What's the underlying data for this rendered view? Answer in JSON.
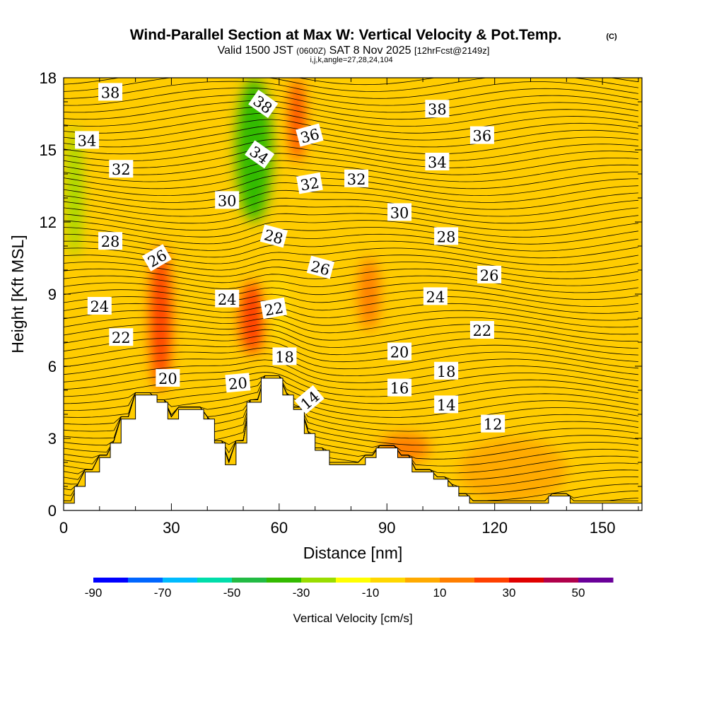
{
  "chart_data": {
    "type": "heatmap",
    "title": "Wind-Parallel Section at Max W: Vertical Velocity & Pot.Temp.",
    "copyright": "(C)",
    "subtitle": {
      "valid": "Valid 1500 JST",
      "zulu": "(0600Z)",
      "date": "SAT 8 Nov 2025",
      "forecast": "[12hrFcst@2149z]"
    },
    "indices": "i,j,k,angle=27,28,24,104",
    "xlabel": "Distance [nm]",
    "ylabel": "Height [Kft MSL]",
    "xlim": [
      0,
      161
    ],
    "ylim": [
      0,
      18
    ],
    "xticks": [
      "0",
      "30",
      "60",
      "90",
      "120",
      "150"
    ],
    "yticks": [
      "0",
      "3",
      "6",
      "9",
      "12",
      "15",
      "18"
    ],
    "colorbar": {
      "label": "Vertical Velocity [cm/s]",
      "ticks": [
        "-90",
        "-70",
        "-50",
        "-30",
        "-10",
        "10",
        "30",
        "50"
      ],
      "range": [
        -90,
        60
      ],
      "colors": [
        "#0000ff",
        "#0066ff",
        "#00bbff",
        "#00ddaa",
        "#22bb44",
        "#33bb00",
        "#99dd00",
        "#ffff00",
        "#ffd700",
        "#ffaa00",
        "#ff7f00",
        "#ff4000",
        "#e00000",
        "#b0004a",
        "#6a0099"
      ]
    },
    "terrain_kft": [
      [
        0,
        0.3
      ],
      [
        3,
        0.3
      ],
      [
        3,
        1
      ],
      [
        6,
        1
      ],
      [
        6,
        1.6
      ],
      [
        10,
        1.6
      ],
      [
        10,
        2.2
      ],
      [
        13,
        2.2
      ],
      [
        13,
        2.8
      ],
      [
        16,
        2.8
      ],
      [
        16,
        3.8
      ],
      [
        20,
        3.8
      ],
      [
        20,
        4.8
      ],
      [
        26,
        4.8
      ],
      [
        26,
        4.5
      ],
      [
        29,
        4.5
      ],
      [
        29,
        3.8
      ],
      [
        32,
        3.8
      ],
      [
        32,
        4.2
      ],
      [
        39,
        4.2
      ],
      [
        39,
        3.8
      ],
      [
        42,
        3.8
      ],
      [
        42,
        2.8
      ],
      [
        45,
        2.8
      ],
      [
        45,
        1.9
      ],
      [
        48,
        1.9
      ],
      [
        48,
        2.8
      ],
      [
        51,
        2.8
      ],
      [
        51,
        4.5
      ],
      [
        55,
        4.5
      ],
      [
        55,
        5.5
      ],
      [
        61,
        5.5
      ],
      [
        61,
        4.8
      ],
      [
        64,
        4.8
      ],
      [
        64,
        4.2
      ],
      [
        67,
        4.2
      ],
      [
        67,
        3.2
      ],
      [
        70,
        3.2
      ],
      [
        70,
        2.5
      ],
      [
        74,
        2.5
      ],
      [
        74,
        1.9
      ],
      [
        84,
        1.9
      ],
      [
        84,
        2.2
      ],
      [
        87,
        2.2
      ],
      [
        87,
        2.6
      ],
      [
        93,
        2.6
      ],
      [
        93,
        2.2
      ],
      [
        97,
        2.2
      ],
      [
        97,
        1.6
      ],
      [
        103,
        1.6
      ],
      [
        103,
        1.3
      ],
      [
        107,
        1.3
      ],
      [
        107,
        1.0
      ],
      [
        110,
        1.0
      ],
      [
        110,
        0.6
      ],
      [
        113,
        0.6
      ],
      [
        113,
        0.3
      ],
      [
        135,
        0.3
      ],
      [
        135,
        0.6
      ],
      [
        141,
        0.6
      ],
      [
        141,
        0.3
      ],
      [
        161,
        0.3
      ]
    ],
    "theta_labels": [
      {
        "text": "38",
        "x": 13,
        "y": 17.4,
        "angle": 0
      },
      {
        "text": "38",
        "x": 55.5,
        "y": 16.9,
        "angle": 35
      },
      {
        "text": "38",
        "x": 104,
        "y": 16.7,
        "angle": 0
      },
      {
        "text": "34",
        "x": 6.5,
        "y": 15.4,
        "angle": 0
      },
      {
        "text": "36",
        "x": 68.5,
        "y": 15.6,
        "angle": -15
      },
      {
        "text": "36",
        "x": 116.5,
        "y": 15.6,
        "angle": 0
      },
      {
        "text": "34",
        "x": 54.5,
        "y": 14.8,
        "angle": 35
      },
      {
        "text": "34",
        "x": 104,
        "y": 14.5,
        "angle": 0
      },
      {
        "text": "32",
        "x": 16,
        "y": 14.2,
        "angle": 0
      },
      {
        "text": "32",
        "x": 68.5,
        "y": 13.6,
        "angle": -10
      },
      {
        "text": "32",
        "x": 81.5,
        "y": 13.8,
        "angle": 0
      },
      {
        "text": "30",
        "x": 45.5,
        "y": 12.9,
        "angle": 0
      },
      {
        "text": "30",
        "x": 93.5,
        "y": 12.4,
        "angle": 0
      },
      {
        "text": "28",
        "x": 13,
        "y": 11.2,
        "angle": 0
      },
      {
        "text": "28",
        "x": 58.5,
        "y": 11.4,
        "angle": 15
      },
      {
        "text": "28",
        "x": 106.5,
        "y": 11.4,
        "angle": 0
      },
      {
        "text": "26",
        "x": 26,
        "y": 10.5,
        "angle": -30
      },
      {
        "text": "26",
        "x": 71.5,
        "y": 10.1,
        "angle": 15
      },
      {
        "text": "26",
        "x": 118.5,
        "y": 9.8,
        "angle": 0
      },
      {
        "text": "24",
        "x": 10,
        "y": 8.5,
        "angle": 0
      },
      {
        "text": "24",
        "x": 45.5,
        "y": 8.8,
        "angle": 0
      },
      {
        "text": "24",
        "x": 103.5,
        "y": 8.9,
        "angle": 0
      },
      {
        "text": "22",
        "x": 58.5,
        "y": 8.4,
        "angle": -10
      },
      {
        "text": "22",
        "x": 16,
        "y": 7.2,
        "angle": 0
      },
      {
        "text": "22",
        "x": 116.5,
        "y": 7.5,
        "angle": 0
      },
      {
        "text": "18",
        "x": 61.5,
        "y": 6.4,
        "angle": 0
      },
      {
        "text": "20",
        "x": 93.5,
        "y": 6.6,
        "angle": 0
      },
      {
        "text": "20",
        "x": 29,
        "y": 5.5,
        "angle": 0
      },
      {
        "text": "20",
        "x": 48.5,
        "y": 5.3,
        "angle": -5
      },
      {
        "text": "18",
        "x": 106.5,
        "y": 5.8,
        "angle": 0
      },
      {
        "text": "16",
        "x": 93.5,
        "y": 5.1,
        "angle": 0
      },
      {
        "text": "14",
        "x": 68.5,
        "y": 4.6,
        "angle": -40
      },
      {
        "text": "14",
        "x": 106.5,
        "y": 4.4,
        "angle": 0
      },
      {
        "text": "12",
        "x": 119.5,
        "y": 3.6,
        "angle": 0
      }
    ],
    "w_regions": [
      {
        "w": 20,
        "x": [
          24,
          30
        ],
        "y": [
          5,
          11
        ]
      },
      {
        "w": 20,
        "x": [
          49,
          56
        ],
        "y": [
          6.5,
          9.5
        ]
      },
      {
        "w": 25,
        "x": [
          63,
          67
        ],
        "y": [
          14.5,
          18
        ]
      },
      {
        "w": 12,
        "x": [
          82,
          88
        ],
        "y": [
          7.5,
          10.5
        ]
      },
      {
        "w": 12,
        "x": [
          88,
          102
        ],
        "y": [
          2,
          3.2
        ]
      },
      {
        "w": -35,
        "x": [
          48,
          58
        ],
        "y": [
          12,
          18
        ]
      },
      {
        "w": -25,
        "x": [
          1,
          5
        ],
        "y": [
          10.5,
          16
        ]
      },
      {
        "w": -10,
        "x": [
          57,
          63
        ],
        "y": [
          7,
          10
        ]
      },
      {
        "w": 8,
        "x": [
          110,
          140
        ],
        "y": [
          0.3,
          3
        ]
      }
    ]
  }
}
